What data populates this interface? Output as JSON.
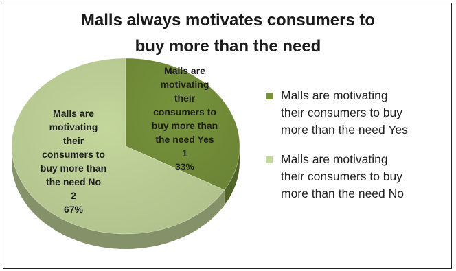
{
  "chart_data": {
    "type": "pie",
    "title": [
      "Malls always motivates consumers to",
      "buy more than the need"
    ],
    "slices": [
      {
        "name": "Malls are motivating their consumers to buy more than the need Yes",
        "value": 1,
        "percent": "33%",
        "color": "#77933C",
        "label_lines": [
          "Malls are",
          "motivating",
          "their",
          "consumers to",
          "buy more than",
          "the need Yes",
          "1",
          "33%"
        ],
        "legend_lines": [
          "Malls are motivating",
          "their consumers to buy",
          "more than the need Yes"
        ]
      },
      {
        "name": "Malls are motivating their consumers to buy more than the need No",
        "value": 2,
        "percent": "67%",
        "color": "#C3D69B",
        "label_lines": [
          "Malls are",
          "motivating",
          "their",
          "consumers to",
          "buy more than",
          "the need No",
          "2",
          "67%"
        ],
        "legend_lines": [
          "Malls are motivating",
          "their consumers to buy",
          "more than the need No"
        ]
      }
    ],
    "legend_position": "right",
    "style": "3d"
  }
}
